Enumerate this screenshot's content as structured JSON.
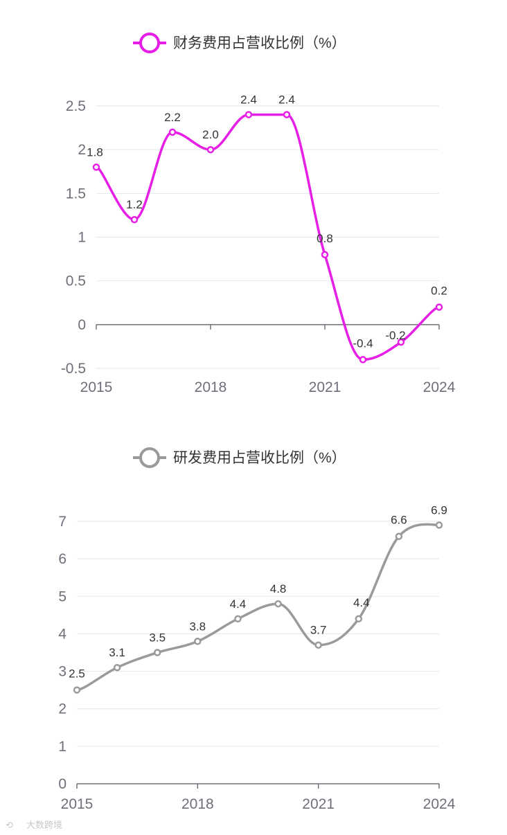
{
  "chart_data": [
    {
      "type": "line",
      "title": "财务费用占营收比例（%）",
      "legend": {
        "name": "财务费用占营收比例（%）",
        "color": "#e61ee6",
        "position": "top-center"
      },
      "x": [
        "2015",
        "2016",
        "2017",
        "2018",
        "2019",
        "2020",
        "2021",
        "2022",
        "2023",
        "2024"
      ],
      "x_tick_labels": [
        "2015",
        "2018",
        "2021",
        "2024"
      ],
      "values": [
        1.8,
        1.2,
        2.2,
        2.0,
        2.4,
        2.4,
        0.8,
        -0.4,
        -0.2,
        0.2
      ],
      "data_labels": [
        "1.8",
        "1.2",
        "2.2",
        "2.0",
        "2.4",
        "2.4",
        "0.8",
        "-0.4",
        "-0.2",
        "0.2"
      ],
      "y_ticks": [
        -0.5,
        0,
        0.5,
        1,
        1.5,
        2,
        2.5
      ],
      "y_tick_labels": [
        "-0.5",
        "0",
        "0.5",
        "1",
        "1.5",
        "2",
        "2.5"
      ],
      "ylim": [
        -0.5,
        2.5
      ],
      "smooth": true,
      "grid": true
    },
    {
      "type": "line",
      "title": "研发费用占营收比例（%）",
      "legend": {
        "name": "研发费用占营收比例（%）",
        "color": "#9a9a9a",
        "position": "top-center"
      },
      "x": [
        "2015",
        "2016",
        "2017",
        "2018",
        "2019",
        "2020",
        "2021",
        "2022",
        "2023",
        "2024"
      ],
      "x_tick_labels": [
        "2015",
        "2018",
        "2021",
        "2024"
      ],
      "values": [
        2.5,
        3.1,
        3.5,
        3.8,
        4.4,
        4.8,
        3.7,
        4.4,
        6.6,
        6.9
      ],
      "data_labels": [
        "2.5",
        "3.1",
        "3.5",
        "3.8",
        "4.4",
        "4.8",
        "3.7",
        "4.4",
        "6.6",
        "6.9"
      ],
      "y_ticks": [
        0,
        1,
        2,
        3,
        4,
        5,
        6,
        7
      ],
      "y_tick_labels": [
        "0",
        "1",
        "2",
        "3",
        "4",
        "5",
        "6",
        "7"
      ],
      "ylim": [
        0,
        7
      ],
      "smooth": true,
      "grid": true
    }
  ],
  "watermark": {
    "text": "大数跨境"
  }
}
